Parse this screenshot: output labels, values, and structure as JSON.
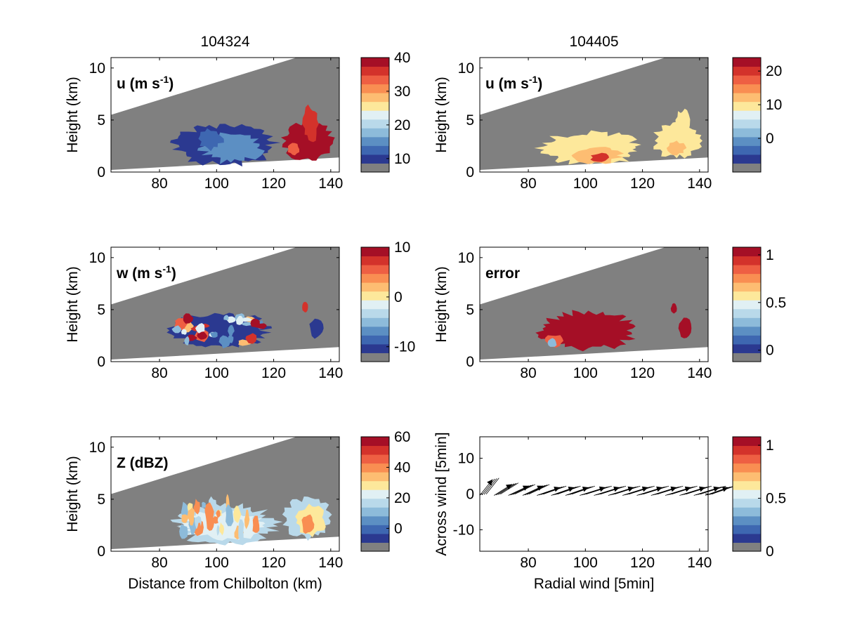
{
  "columns": [
    {
      "title": "104324"
    },
    {
      "title": "104405"
    }
  ],
  "colors": {
    "missing": "#808080",
    "axis": "#000000",
    "palette": [
      "#2b3990",
      "#3e67b1",
      "#5c8fc3",
      "#8dbbda",
      "#b9d9ea",
      "#e1f0f4",
      "#fde89b",
      "#fdbd72",
      "#f98e52",
      "#ee5f43",
      "#d3322b",
      "#a50f26"
    ]
  },
  "chart_data": [
    {
      "type": "heatmap",
      "panel": "u-104324",
      "label": "u (m s",
      "label_sup": "-1",
      "label_suffix": ")",
      "ylabel": "Height (km)",
      "xlabel": "",
      "xlim": [
        63,
        143
      ],
      "ylim": [
        0,
        11
      ],
      "xticks": [
        "80",
        "100",
        "120",
        "140"
      ],
      "yticks": [
        "0",
        "5",
        "10"
      ],
      "colorbar": {
        "ticks": [
          "10",
          "20",
          "30",
          "40"
        ],
        "range": [
          6,
          40
        ]
      }
    },
    {
      "type": "heatmap",
      "panel": "u-104405",
      "label": "u (m s",
      "label_sup": "-1",
      "label_suffix": ")",
      "ylabel": "Height (km)",
      "xlabel": "",
      "xlim": [
        63,
        143
      ],
      "ylim": [
        0,
        11
      ],
      "xticks": [
        "80",
        "100",
        "120",
        "140"
      ],
      "yticks": [
        "0",
        "5",
        "10"
      ],
      "colorbar": {
        "ticks": [
          "0",
          "10",
          "20"
        ],
        "range": [
          -10,
          24
        ]
      }
    },
    {
      "type": "heatmap",
      "panel": "w-104324",
      "label": "w (m s",
      "label_sup": "-1",
      "label_suffix": ")",
      "ylabel": "Height (km)",
      "xlabel": "",
      "xlim": [
        63,
        143
      ],
      "ylim": [
        0,
        11
      ],
      "xticks": [
        "80",
        "100",
        "120",
        "140"
      ],
      "yticks": [
        "0",
        "5",
        "10"
      ],
      "colorbar": {
        "ticks": [
          "-10",
          "0",
          "10"
        ],
        "range": [
          -13,
          10
        ]
      }
    },
    {
      "type": "heatmap",
      "panel": "error-104405",
      "label": "error",
      "ylabel": "Height (km)",
      "xlabel": "",
      "xlim": [
        63,
        143
      ],
      "ylim": [
        0,
        11
      ],
      "xticks": [
        "80",
        "100",
        "120",
        "140"
      ],
      "yticks": [
        "0",
        "5",
        "10"
      ],
      "colorbar": {
        "ticks": [
          "0",
          "0.5",
          "1"
        ],
        "range": [
          -0.12,
          1.08
        ]
      }
    },
    {
      "type": "heatmap",
      "panel": "Z-104324",
      "label": "Z (dBZ)",
      "ylabel": "Height (km)",
      "xlabel": "Distance from Chilbolton (km)",
      "xlim": [
        63,
        143
      ],
      "ylim": [
        0,
        11
      ],
      "xticks": [
        "80",
        "100",
        "120",
        "140"
      ],
      "yticks": [
        "0",
        "5",
        "10"
      ],
      "colorbar": {
        "ticks": [
          "0",
          "20",
          "40",
          "60"
        ],
        "range": [
          -15,
          60
        ]
      }
    },
    {
      "type": "quiver",
      "panel": "wind-104405",
      "ylabel": "Across wind [5min]",
      "xlabel": "Radial wind [5min]",
      "xlim": [
        63,
        143
      ],
      "ylim": [
        -16,
        16
      ],
      "xticks": [
        "80",
        "100",
        "120",
        "140"
      ],
      "yticks": [
        "-10",
        "0",
        "10"
      ],
      "colorbar": {
        "ticks": [
          "0",
          "0.5",
          "1"
        ],
        "range": [
          0,
          1.08
        ]
      },
      "arrow_x": [
        63,
        68,
        73,
        78,
        83,
        88,
        93,
        98,
        103,
        108,
        113,
        118,
        123,
        128,
        133,
        138,
        142
      ],
      "arrow_u": [
        5,
        7,
        8,
        8,
        9,
        9,
        9,
        10,
        10,
        10,
        10,
        10,
        10,
        10,
        10,
        10,
        9
      ],
      "arrow_v": [
        5,
        3.5,
        3,
        3,
        2.5,
        2.5,
        2.5,
        2.5,
        2.5,
        2.5,
        2.5,
        2.5,
        2.5,
        2.5,
        2.5,
        2.5,
        2.5
      ]
    }
  ]
}
